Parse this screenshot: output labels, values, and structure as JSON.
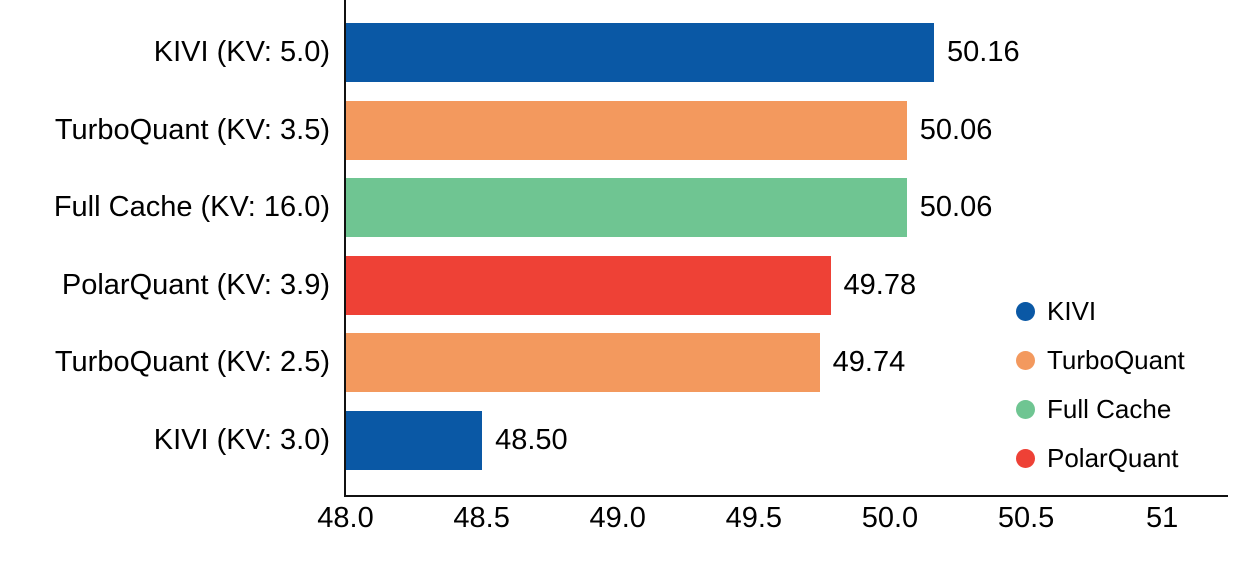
{
  "chart_data": {
    "type": "bar",
    "orientation": "horizontal",
    "title": "",
    "categories": [
      "KIVI (KV: 5.0)",
      "TurboQuant (KV: 3.5)",
      "Full Cache (KV: 16.0)",
      "PolarQuant (KV: 3.9)",
      "TurboQuant (KV: 2.5)",
      "KIVI (KV: 3.0)"
    ],
    "values": [
      50.16,
      50.06,
      50.06,
      49.78,
      49.74,
      48.5
    ],
    "value_labels": [
      "50.16",
      "50.06",
      "50.06",
      "49.78",
      "49.74",
      "48.50"
    ],
    "bar_series": [
      "KIVI",
      "TurboQuant",
      "Full Cache",
      "PolarQuant",
      "TurboQuant",
      "KIVI"
    ],
    "bar_colors": [
      "#0a58a5",
      "#f3995e",
      "#6fc592",
      "#ee4136",
      "#f3995e",
      "#0a58a5"
    ],
    "xlim": [
      48.0,
      51.24
    ],
    "x_ticks": [
      {
        "value": 48.0,
        "label": "48.0"
      },
      {
        "value": 48.5,
        "label": "48.5"
      },
      {
        "value": 49.0,
        "label": "49.0"
      },
      {
        "value": 49.5,
        "label": "49.5"
      },
      {
        "value": 50.0,
        "label": "50.0"
      },
      {
        "value": 50.5,
        "label": "50.5"
      },
      {
        "value": 51.0,
        "label": "51"
      }
    ],
    "xlabel": "",
    "ylabel": "",
    "grid": false,
    "legend": {
      "position": "right-middle",
      "items": [
        {
          "label": "KIVI",
          "color": "#0a58a5"
        },
        {
          "label": "TurboQuant",
          "color": "#f3995e"
        },
        {
          "label": "Full Cache",
          "color": "#6fc592"
        },
        {
          "label": "PolarQuant",
          "color": "#ee4136"
        }
      ]
    },
    "axis_color": "#111111",
    "text_color": "#000000",
    "background": "#ffffff"
  }
}
